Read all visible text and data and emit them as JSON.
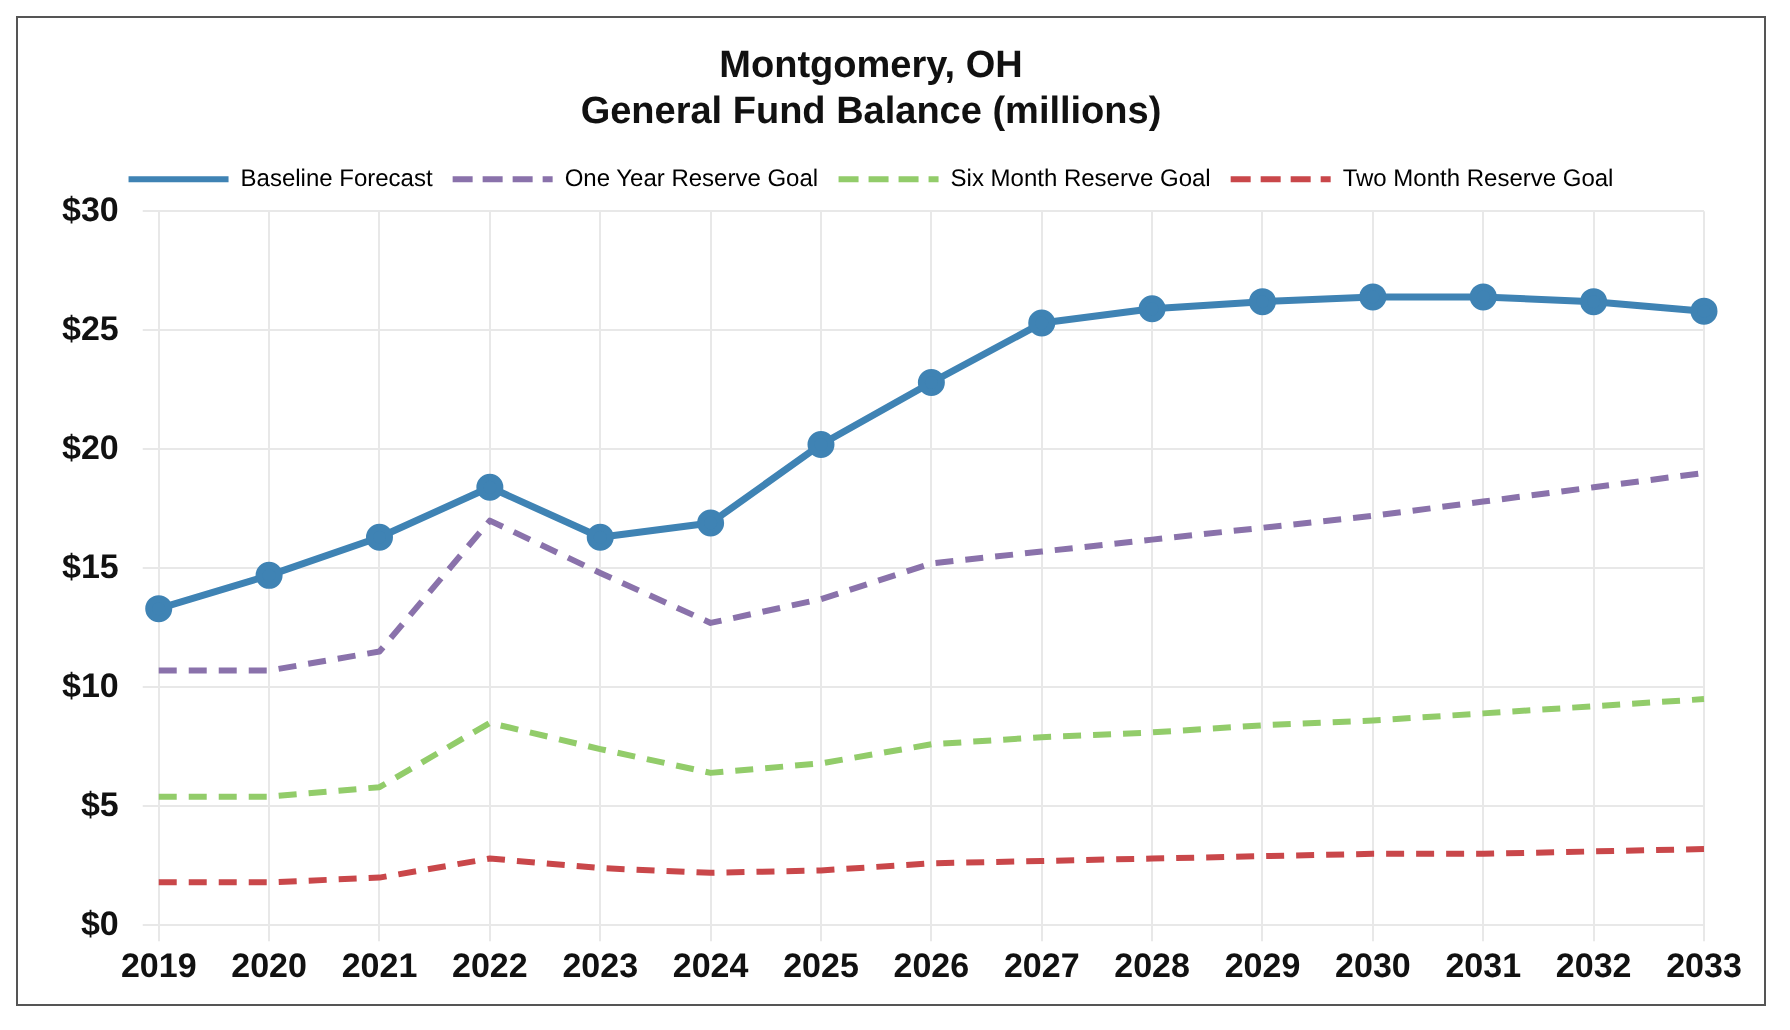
{
  "chart_data": {
    "type": "line",
    "title": [
      "Montgomery, OH",
      "General Fund Balance (millions)"
    ],
    "categories": [
      "2019",
      "2020",
      "2021",
      "2022",
      "2023",
      "2024",
      "2025",
      "2026",
      "2027",
      "2028",
      "2029",
      "2030",
      "2031",
      "2032",
      "2033"
    ],
    "series": [
      {
        "name": "Baseline Forecast",
        "color": "#3f83b4",
        "marker": "circle",
        "line_style": "solid",
        "values": [
          13.3,
          14.7,
          16.3,
          18.4,
          16.3,
          16.9,
          20.2,
          22.8,
          25.3,
          25.9,
          26.2,
          26.4,
          26.4,
          26.2,
          25.8
        ]
      },
      {
        "name": "One Year Reserve Goal",
        "color": "#8a72ab",
        "marker": "none",
        "line_style": "dashed",
        "values": [
          10.7,
          10.7,
          11.5,
          17.0,
          14.8,
          12.7,
          13.7,
          15.2,
          15.7,
          16.2,
          16.7,
          17.2,
          17.8,
          18.4,
          19.0
        ]
      },
      {
        "name": "Six Month Reserve Goal",
        "color": "#92cc6a",
        "marker": "none",
        "line_style": "dashed",
        "values": [
          5.4,
          5.4,
          5.8,
          8.5,
          7.4,
          6.4,
          6.8,
          7.6,
          7.9,
          8.1,
          8.4,
          8.6,
          8.9,
          9.2,
          9.5
        ]
      },
      {
        "name": "Two Month Reserve Goal",
        "color": "#c9474a",
        "marker": "none",
        "line_style": "dashed",
        "values": [
          1.8,
          1.8,
          2.0,
          2.8,
          2.4,
          2.2,
          2.3,
          2.6,
          2.7,
          2.8,
          2.9,
          3.0,
          3.0,
          3.1,
          3.2
        ]
      }
    ],
    "ylim": [
      0,
      30
    ],
    "yticks": [
      {
        "value": 0,
        "label": "$0"
      },
      {
        "value": 5,
        "label": "$5"
      },
      {
        "value": 10,
        "label": "$10"
      },
      {
        "value": 15,
        "label": "$15"
      },
      {
        "value": 20,
        "label": "$20"
      },
      {
        "value": 25,
        "label": "$25"
      },
      {
        "value": 30,
        "label": "$30"
      }
    ],
    "grid": true,
    "legend": "top"
  }
}
